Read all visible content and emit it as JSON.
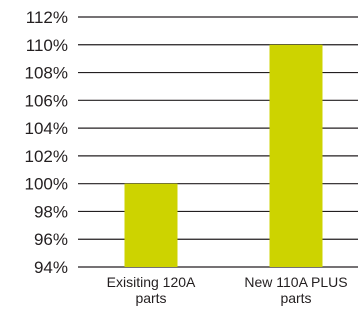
{
  "chart_data": {
    "type": "bar",
    "categories": [
      [
        "Exisiting 120A",
        "parts"
      ],
      [
        "New 110A PLUS",
        "parts"
      ]
    ],
    "values": [
      100,
      110
    ],
    "ylim": [
      94,
      112
    ],
    "y_ticks": [
      "94%",
      "96%",
      "98%",
      "100%",
      "102%",
      "104%",
      "106%",
      "108%",
      "110%",
      "112%"
    ],
    "y_tick_values": [
      94,
      96,
      98,
      100,
      102,
      104,
      106,
      108,
      110,
      112
    ],
    "grid": true,
    "legend": "none",
    "colors": {
      "bar": "#cdd300",
      "grid": "#231f20",
      "text": "#231f20"
    }
  }
}
